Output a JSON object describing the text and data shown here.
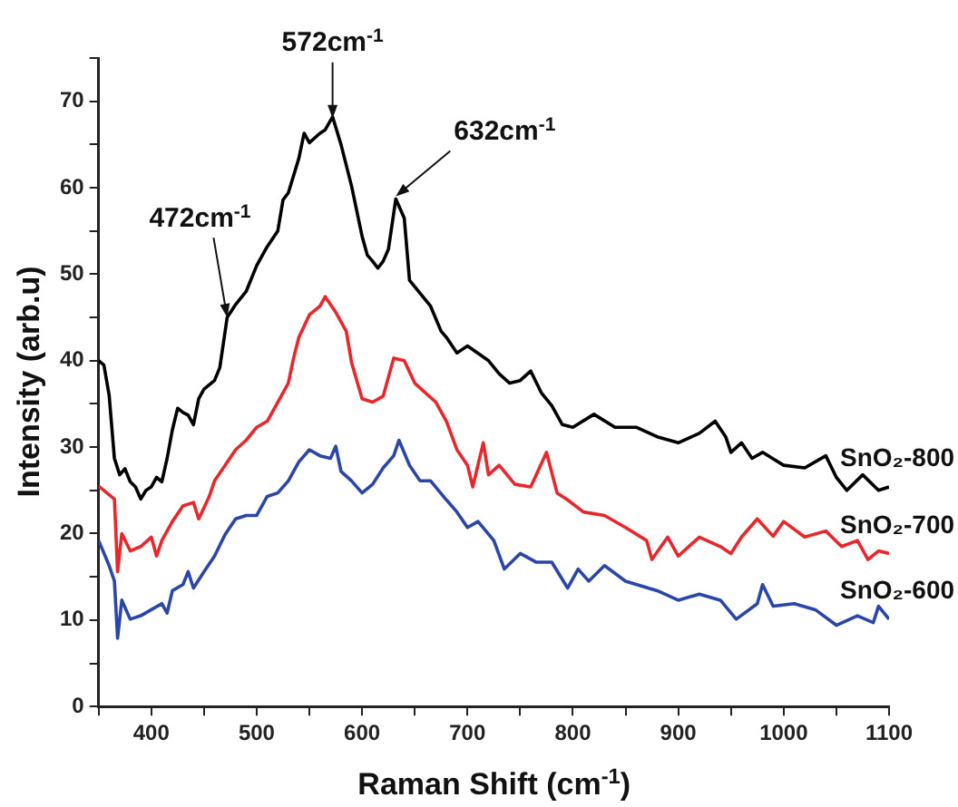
{
  "chart_data": {
    "type": "line",
    "xlabel": "Raman Shift (cm$^{-1}$)",
    "ylabel": "Intensity (arb.u)",
    "xlim": [
      350,
      1100
    ],
    "ylim": [
      0,
      75
    ],
    "xticks": [
      {
        "value": 350,
        "label": null
      },
      400,
      {
        "value": 450,
        "label": null
      },
      500,
      {
        "value": 550,
        "label": null
      },
      600,
      {
        "value": 650,
        "label": null
      },
      700,
      {
        "value": 750,
        "label": null
      },
      800,
      {
        "value": 850,
        "label": null
      },
      900,
      {
        "value": 950,
        "label": null
      },
      1000,
      {
        "value": 1050,
        "label": null
      },
      1100
    ],
    "yticks": [
      0,
      {
        "value": 5,
        "label": null
      },
      10,
      {
        "value": 15,
        "label": null
      },
      20,
      {
        "value": 25,
        "label": null
      },
      30,
      {
        "value": 35,
        "label": null
      },
      40,
      {
        "value": 45,
        "label": null
      },
      50,
      {
        "value": 55,
        "label": null
      },
      60,
      {
        "value": 65,
        "label": null
      },
      70,
      {
        "value": 75,
        "label": null
      }
    ],
    "grid": false,
    "legend": false,
    "marker": "none",
    "line_style": "solid",
    "series": [
      {
        "name": "SnO₂-800",
        "color": "#000000",
        "x": [
          350,
          355,
          360,
          365,
          370,
          375,
          380,
          385,
          390,
          395,
          400,
          405,
          410,
          415,
          420,
          425,
          430,
          435,
          440,
          445,
          450,
          460,
          465,
          472,
          480,
          490,
          500,
          510,
          520,
          525,
          530,
          540,
          545,
          550,
          560,
          565,
          572,
          580,
          590,
          600,
          605,
          610,
          615,
          620,
          625,
          632,
          640,
          645,
          655,
          665,
          675,
          680,
          690,
          700,
          720,
          730,
          740,
          750,
          760,
          770,
          780,
          790,
          800,
          820,
          840,
          860,
          880,
          900,
          920,
          935,
          945,
          950,
          960,
          970,
          980,
          1000,
          1020,
          1040,
          1050,
          1060,
          1075,
          1090,
          1100
        ],
        "values": [
          40,
          39.5,
          36,
          28.7,
          26.8,
          27.5,
          26,
          25.4,
          24,
          25,
          25.4,
          26.5,
          26,
          28.7,
          32,
          34.5,
          34,
          33.7,
          32.6,
          35.6,
          36.7,
          37.7,
          39.2,
          45,
          46.5,
          48,
          51,
          53.2,
          55,
          58.6,
          59.4,
          63.4,
          66.3,
          65.2,
          66.3,
          66.7,
          68.2,
          65,
          60.2,
          54.4,
          52.2,
          51.5,
          50.7,
          51.5,
          52.9,
          58.7,
          56.5,
          49.3,
          47.8,
          46.3,
          43.4,
          42.7,
          40.9,
          41.7,
          40,
          38.5,
          37.4,
          37.7,
          38.8,
          36.3,
          34.8,
          32.6,
          32.3,
          33.8,
          32.3,
          32.3,
          31.2,
          30.5,
          31.6,
          33,
          31.2,
          29.4,
          30.5,
          28.7,
          29.4,
          27.9,
          27.6,
          29,
          26.5,
          25,
          26.8,
          25,
          25.4
        ]
      },
      {
        "name": "SnO₂-700",
        "color": "#e8262b",
        "x": [
          350,
          365,
          368,
          372,
          380,
          390,
          400,
          405,
          410,
          420,
          430,
          440,
          445,
          455,
          460,
          470,
          480,
          490,
          500,
          510,
          520,
          530,
          535,
          540,
          550,
          560,
          565,
          575,
          585,
          590,
          600,
          610,
          620,
          630,
          640,
          650,
          660,
          670,
          680,
          690,
          700,
          705,
          715,
          720,
          730,
          745,
          760,
          775,
          785,
          795,
          810,
          830,
          850,
          870,
          875,
          890,
          900,
          920,
          940,
          950,
          960,
          975,
          990,
          1000,
          1020,
          1040,
          1055,
          1070,
          1080,
          1090,
          1100
        ],
        "values": [
          25.5,
          24,
          15.6,
          20,
          18,
          18.5,
          19.6,
          17.4,
          19.2,
          21.4,
          23.2,
          23.6,
          21.7,
          24.3,
          26.1,
          27.9,
          29.7,
          30.8,
          32.3,
          33,
          35.2,
          37.4,
          40.3,
          42.7,
          45.3,
          46.3,
          47.4,
          45.6,
          43.4,
          39.8,
          35.6,
          35.2,
          35.9,
          40.3,
          40,
          37.4,
          36.3,
          35.2,
          33,
          29.7,
          27.9,
          25.4,
          30.5,
          26.8,
          27.9,
          25.7,
          25.4,
          29.4,
          24.7,
          23.9,
          22.5,
          22.1,
          20.7,
          19.2,
          17,
          19.6,
          17.4,
          19.6,
          18.5,
          17.7,
          19.6,
          21.7,
          19.7,
          21.4,
          19.6,
          20.3,
          18.5,
          19.2,
          17,
          18,
          17.7
        ]
      },
      {
        "name": "SnO₂-600",
        "color": "#2b45a8",
        "x": [
          350,
          360,
          365,
          368,
          372,
          380,
          390,
          400,
          410,
          415,
          420,
          430,
          435,
          440,
          450,
          460,
          470,
          480,
          490,
          500,
          510,
          520,
          530,
          540,
          550,
          560,
          570,
          575,
          580,
          590,
          600,
          610,
          620,
          630,
          635,
          645,
          655,
          665,
          680,
          690,
          700,
          710,
          725,
          735,
          750,
          765,
          780,
          795,
          805,
          815,
          830,
          850,
          880,
          900,
          920,
          940,
          955,
          975,
          980,
          990,
          1010,
          1030,
          1050,
          1070,
          1085,
          1090,
          1100
        ],
        "values": [
          19.2,
          16.3,
          14.5,
          7.9,
          12.3,
          10.1,
          10.5,
          11.2,
          11.9,
          10.8,
          13.4,
          14.1,
          15.6,
          13.7,
          15.6,
          17.4,
          19.9,
          21.7,
          22.1,
          22.1,
          24.3,
          24.7,
          26.1,
          28.3,
          29.7,
          29,
          28.7,
          30.1,
          27.2,
          26.1,
          24.7,
          25.7,
          27.6,
          29,
          30.8,
          27.9,
          26.1,
          26.1,
          23.9,
          22.5,
          20.7,
          21.4,
          19.2,
          15.9,
          17.7,
          16.7,
          16.7,
          13.7,
          15.9,
          14.5,
          16.3,
          14.5,
          13.4,
          12.3,
          13,
          12.3,
          10.1,
          11.9,
          14.1,
          11.6,
          11.9,
          11.2,
          9.4,
          10.5,
          9.7,
          11.6,
          10.1
        ]
      }
    ],
    "annotations": [
      {
        "text": "472cm$^{-1}$",
        "x": 472,
        "y": 45
      },
      {
        "text": "572cm$^{-1}$",
        "x": 572,
        "y": 68
      },
      {
        "text": "632cm$^{-1}$",
        "x": 632,
        "y": 59
      }
    ]
  }
}
